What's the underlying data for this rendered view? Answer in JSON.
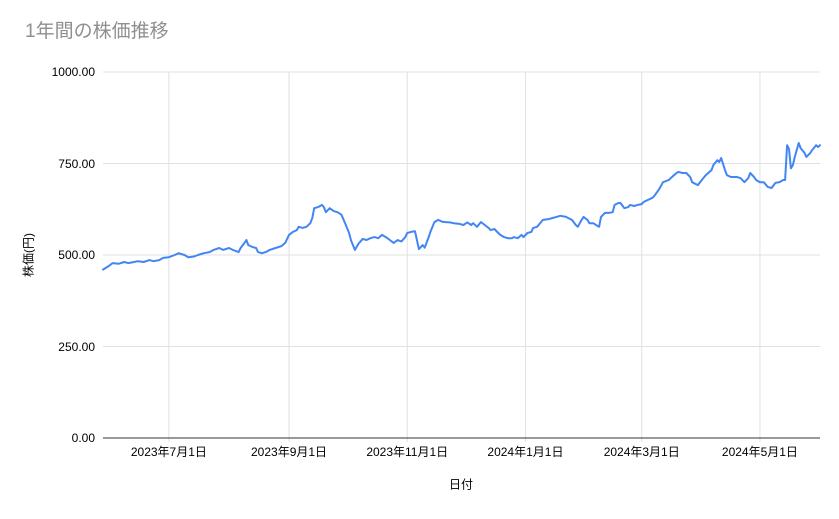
{
  "chart": {
    "title": "1年間の株価推移",
    "xlabel": "日付",
    "ylabel": "株価(円)"
  },
  "colors": {
    "line": "#4285f4",
    "grid": "#e0e0e0",
    "axis_line": "#333333",
    "title_text": "#8f8f8f",
    "tick_text": "#000000"
  },
  "chart_data": {
    "type": "line",
    "title": "1年間の株価推移",
    "xlabel": "日付",
    "ylabel": "株価(円)",
    "ylim": [
      0,
      1000
    ],
    "x_range": [
      "2023-05-28",
      "2024-06-01"
    ],
    "grid": true,
    "legend": "none",
    "y_ticks": [
      {
        "value": 0,
        "label": "0.00"
      },
      {
        "value": 250,
        "label": "250.00"
      },
      {
        "value": 500,
        "label": "500.00"
      },
      {
        "value": 750,
        "label": "750.00"
      },
      {
        "value": 1000,
        "label": "1000.00"
      }
    ],
    "x_ticks": [
      {
        "date": "2023-07-01",
        "label": "2023年7月1日"
      },
      {
        "date": "2023-09-01",
        "label": "2023年9月1日"
      },
      {
        "date": "2023-11-01",
        "label": "2023年11月1日"
      },
      {
        "date": "2024-01-01",
        "label": "2024年1月1日"
      },
      {
        "date": "2024-03-01",
        "label": "2024年3月1日"
      },
      {
        "date": "2024-05-01",
        "label": "2024年5月1日"
      }
    ],
    "series": [
      {
        "name": "株価",
        "color": "#4285f4",
        "points": [
          [
            "2023-05-28",
            460
          ],
          [
            "2023-05-31",
            470
          ],
          [
            "2023-06-02",
            478
          ],
          [
            "2023-06-05",
            476
          ],
          [
            "2023-06-08",
            481
          ],
          [
            "2023-06-10",
            478
          ],
          [
            "2023-06-13",
            481
          ],
          [
            "2023-06-15",
            483
          ],
          [
            "2023-06-18",
            481
          ],
          [
            "2023-06-21",
            486
          ],
          [
            "2023-06-23",
            483
          ],
          [
            "2023-06-26",
            486
          ],
          [
            "2023-06-28",
            492
          ],
          [
            "2023-07-01",
            494
          ],
          [
            "2023-07-04",
            500
          ],
          [
            "2023-07-06",
            505
          ],
          [
            "2023-07-09",
            500
          ],
          [
            "2023-07-11",
            494
          ],
          [
            "2023-07-14",
            496
          ],
          [
            "2023-07-16",
            500
          ],
          [
            "2023-07-19",
            505
          ],
          [
            "2023-07-22",
            508
          ],
          [
            "2023-07-24",
            514
          ],
          [
            "2023-07-27",
            519
          ],
          [
            "2023-07-29",
            514
          ],
          [
            "2023-08-01",
            519
          ],
          [
            "2023-08-03",
            514
          ],
          [
            "2023-08-06",
            508
          ],
          [
            "2023-08-07",
            519
          ],
          [
            "2023-08-09",
            533
          ],
          [
            "2023-08-10",
            541
          ],
          [
            "2023-08-11",
            527
          ],
          [
            "2023-08-13",
            522
          ],
          [
            "2023-08-15",
            519
          ],
          [
            "2023-08-16",
            508
          ],
          [
            "2023-08-18",
            505
          ],
          [
            "2023-08-20",
            508
          ],
          [
            "2023-08-22",
            514
          ],
          [
            "2023-08-25",
            519
          ],
          [
            "2023-08-28",
            524
          ],
          [
            "2023-08-30",
            533
          ],
          [
            "2023-09-01",
            555
          ],
          [
            "2023-09-03",
            563
          ],
          [
            "2023-09-05",
            568
          ],
          [
            "2023-09-06",
            577
          ],
          [
            "2023-09-08",
            574
          ],
          [
            "2023-09-10",
            577
          ],
          [
            "2023-09-12",
            587
          ],
          [
            "2023-09-13",
            601
          ],
          [
            "2023-09-14",
            628
          ],
          [
            "2023-09-16",
            631
          ],
          [
            "2023-09-18",
            637
          ],
          [
            "2023-09-19",
            631
          ],
          [
            "2023-09-20",
            617
          ],
          [
            "2023-09-22",
            628
          ],
          [
            "2023-09-24",
            620
          ],
          [
            "2023-09-26",
            617
          ],
          [
            "2023-09-28",
            610
          ],
          [
            "2023-09-30",
            586
          ],
          [
            "2023-10-02",
            560
          ],
          [
            "2023-10-03",
            540
          ],
          [
            "2023-10-05",
            514
          ],
          [
            "2023-10-07",
            532
          ],
          [
            "2023-10-09",
            544
          ],
          [
            "2023-10-11",
            541
          ],
          [
            "2023-10-13",
            546
          ],
          [
            "2023-10-15",
            549
          ],
          [
            "2023-10-17",
            546
          ],
          [
            "2023-10-19",
            555
          ],
          [
            "2023-10-21",
            549
          ],
          [
            "2023-10-23",
            541
          ],
          [
            "2023-10-25",
            533
          ],
          [
            "2023-10-27",
            541
          ],
          [
            "2023-10-29",
            537
          ],
          [
            "2023-10-31",
            549
          ],
          [
            "2023-11-01",
            560
          ],
          [
            "2023-11-03",
            563
          ],
          [
            "2023-11-05",
            565
          ],
          [
            "2023-11-07",
            516
          ],
          [
            "2023-11-09",
            527
          ],
          [
            "2023-11-10",
            520
          ],
          [
            "2023-11-12",
            548
          ],
          [
            "2023-11-13",
            564
          ],
          [
            "2023-11-15",
            590
          ],
          [
            "2023-11-17",
            596
          ],
          [
            "2023-11-19",
            591
          ],
          [
            "2023-11-21",
            590
          ],
          [
            "2023-11-23",
            589
          ],
          [
            "2023-11-25",
            587
          ],
          [
            "2023-11-28",
            585
          ],
          [
            "2023-11-30",
            582
          ],
          [
            "2023-12-02",
            589
          ],
          [
            "2023-12-04",
            582
          ],
          [
            "2023-12-05",
            587
          ],
          [
            "2023-12-07",
            577
          ],
          [
            "2023-12-09",
            590
          ],
          [
            "2023-12-11",
            582
          ],
          [
            "2023-12-13",
            574
          ],
          [
            "2023-12-14",
            568
          ],
          [
            "2023-12-16",
            571
          ],
          [
            "2023-12-18",
            560
          ],
          [
            "2023-12-19",
            555
          ],
          [
            "2023-12-21",
            549
          ],
          [
            "2023-12-23",
            546
          ],
          [
            "2023-12-25",
            546
          ],
          [
            "2023-12-26",
            549
          ],
          [
            "2023-12-28",
            546
          ],
          [
            "2023-12-30",
            555
          ],
          [
            "2023-12-31",
            549
          ],
          [
            "2024-01-02",
            560
          ],
          [
            "2024-01-04",
            563
          ],
          [
            "2024-01-05",
            574
          ],
          [
            "2024-01-07",
            577
          ],
          [
            "2024-01-09",
            590
          ],
          [
            "2024-01-10",
            596
          ],
          [
            "2024-01-13",
            598
          ],
          [
            "2024-01-15",
            601
          ],
          [
            "2024-01-17",
            604
          ],
          [
            "2024-01-19",
            607
          ],
          [
            "2024-01-22",
            604
          ],
          [
            "2024-01-23",
            601
          ],
          [
            "2024-01-25",
            596
          ],
          [
            "2024-01-27",
            582
          ],
          [
            "2024-01-28",
            577
          ],
          [
            "2024-01-30",
            596
          ],
          [
            "2024-01-31",
            604
          ],
          [
            "2024-02-02",
            596
          ],
          [
            "2024-02-03",
            587
          ],
          [
            "2024-02-05",
            587
          ],
          [
            "2024-02-07",
            580
          ],
          [
            "2024-02-08",
            577
          ],
          [
            "2024-02-09",
            604
          ],
          [
            "2024-02-11",
            615
          ],
          [
            "2024-02-13",
            615
          ],
          [
            "2024-02-15",
            617
          ],
          [
            "2024-02-16",
            637
          ],
          [
            "2024-02-18",
            642
          ],
          [
            "2024-02-19",
            642
          ],
          [
            "2024-02-21",
            628
          ],
          [
            "2024-02-23",
            631
          ],
          [
            "2024-02-24",
            637
          ],
          [
            "2024-02-26",
            634
          ],
          [
            "2024-02-28",
            637
          ],
          [
            "2024-03-01",
            639
          ],
          [
            "2024-03-02",
            645
          ],
          [
            "2024-03-04",
            650
          ],
          [
            "2024-03-06",
            655
          ],
          [
            "2024-03-07",
            658
          ],
          [
            "2024-03-09",
            672
          ],
          [
            "2024-03-10",
            680
          ],
          [
            "2024-03-12",
            699
          ],
          [
            "2024-03-15",
            705
          ],
          [
            "2024-03-17",
            715
          ],
          [
            "2024-03-19",
            724
          ],
          [
            "2024-03-20",
            727
          ],
          [
            "2024-03-22",
            724
          ],
          [
            "2024-03-24",
            724
          ],
          [
            "2024-03-26",
            713
          ],
          [
            "2024-03-27",
            699
          ],
          [
            "2024-03-30",
            691
          ],
          [
            "2024-04-01",
            705
          ],
          [
            "2024-04-03",
            718
          ],
          [
            "2024-04-06",
            732
          ],
          [
            "2024-04-07",
            746
          ],
          [
            "2024-04-09",
            759
          ],
          [
            "2024-04-10",
            754
          ],
          [
            "2024-04-11",
            765
          ],
          [
            "2024-04-13",
            732
          ],
          [
            "2024-04-14",
            718
          ],
          [
            "2024-04-16",
            713
          ],
          [
            "2024-04-19",
            713
          ],
          [
            "2024-04-21",
            710
          ],
          [
            "2024-04-23",
            699
          ],
          [
            "2024-04-25",
            710
          ],
          [
            "2024-04-26",
            724
          ],
          [
            "2024-04-28",
            713
          ],
          [
            "2024-04-29",
            705
          ],
          [
            "2024-05-01",
            699
          ],
          [
            "2024-05-03",
            699
          ],
          [
            "2024-05-05",
            686
          ],
          [
            "2024-05-07",
            683
          ],
          [
            "2024-05-09",
            697
          ],
          [
            "2024-05-11",
            699
          ],
          [
            "2024-05-13",
            705
          ],
          [
            "2024-05-14",
            705
          ],
          [
            "2024-05-15",
            800
          ],
          [
            "2024-05-16",
            790
          ],
          [
            "2024-05-17",
            737
          ],
          [
            "2024-05-18",
            746
          ],
          [
            "2024-05-19",
            768
          ],
          [
            "2024-05-21",
            806
          ],
          [
            "2024-05-22",
            792
          ],
          [
            "2024-05-24",
            779
          ],
          [
            "2024-05-25",
            768
          ],
          [
            "2024-05-27",
            779
          ],
          [
            "2024-05-28",
            787
          ],
          [
            "2024-05-30",
            800
          ],
          [
            "2024-05-31",
            795
          ],
          [
            "2024-06-01",
            800
          ]
        ]
      }
    ]
  }
}
